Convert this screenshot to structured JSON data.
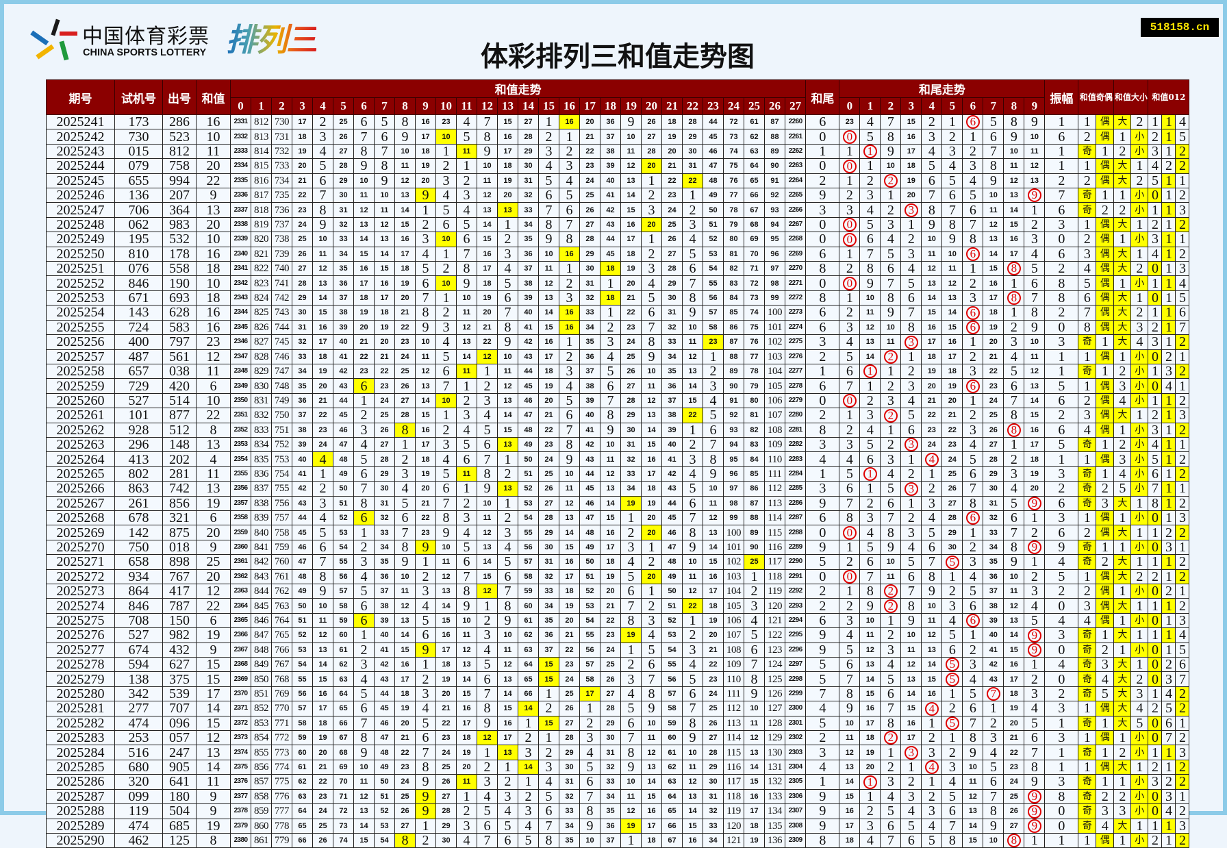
{
  "brand": {
    "cn": "中国体育彩票",
    "en": "CHINA SPORTS LOTTERY",
    "game": "排列三"
  },
  "title": "体彩排列三和值走势图",
  "site_badge": "518158.cn",
  "headers": {
    "issue": "期号",
    "test": "试机号",
    "draw": "出号",
    "sum": "和值",
    "sum_trend": "和值走势",
    "tail": "和尾",
    "tail_trend": "和尾走势",
    "amplitude": "振幅",
    "parity": "和值奇偶",
    "size": "和值大小",
    "mod3": "和值012",
    "sum_cols": [
      "0",
      "1",
      "2",
      "3",
      "4",
      "5",
      "6",
      "7",
      "8",
      "9",
      "10",
      "11",
      "12",
      "13",
      "14",
      "15",
      "16",
      "17",
      "18",
      "19",
      "20",
      "21",
      "22",
      "23",
      "24",
      "25",
      "26",
      "27"
    ],
    "tail_cols": [
      "0",
      "1",
      "2",
      "3",
      "4",
      "5",
      "6",
      "7",
      "8",
      "9"
    ]
  },
  "labels": {
    "odd": "奇",
    "even": "偶",
    "big": "大",
    "small": "小",
    "mod3": [
      "0",
      "1",
      "2"
    ]
  },
  "colors": {
    "header_bg": "#8b0000",
    "hit_bg": "#ffff00",
    "tail_circle": "#e00000",
    "badge_bg": "#000000",
    "badge_text": "#ffe600"
  },
  "first_row_omission": {
    "sum": [
      2331,
      812,
      730,
      17,
      2,
      25,
      6,
      5,
      8,
      16,
      23,
      4,
      7,
      15,
      27,
      1,
      0,
      20,
      36,
      9,
      26,
      18,
      28,
      44,
      72,
      61,
      87,
      2260
    ],
    "tail": [
      23,
      4,
      7,
      15,
      2,
      1,
      0,
      5,
      8,
      9
    ],
    "parity": [
      1,
      0
    ],
    "size": [
      0,
      2
    ],
    "mod3": [
      1,
      0,
      4
    ]
  },
  "rows": [
    {
      "issue": "2025241",
      "test": "173",
      "draw": "286",
      "sum": 16,
      "tail": 6,
      "amp": 1
    },
    {
      "issue": "2025242",
      "test": "730",
      "draw": "523",
      "sum": 10,
      "tail": 0,
      "amp": 6
    },
    {
      "issue": "2025243",
      "test": "015",
      "draw": "812",
      "sum": 11,
      "tail": 1,
      "amp": 1
    },
    {
      "issue": "2025244",
      "test": "079",
      "draw": "758",
      "sum": 20,
      "tail": 0,
      "amp": 1
    },
    {
      "issue": "2025245",
      "test": "655",
      "draw": "994",
      "sum": 22,
      "tail": 2,
      "amp": 2
    },
    {
      "issue": "2025246",
      "test": "136",
      "draw": "207",
      "sum": 9,
      "tail": 9,
      "amp": 7
    },
    {
      "issue": "2025247",
      "test": "706",
      "draw": "364",
      "sum": 13,
      "tail": 3,
      "amp": 6
    },
    {
      "issue": "2025248",
      "test": "062",
      "draw": "983",
      "sum": 20,
      "tail": 0,
      "amp": 3
    },
    {
      "issue": "2025249",
      "test": "195",
      "draw": "532",
      "sum": 10,
      "tail": 0,
      "amp": 0
    },
    {
      "issue": "2025250",
      "test": "810",
      "draw": "178",
      "sum": 16,
      "tail": 6,
      "amp": 6
    },
    {
      "issue": "2025251",
      "test": "076",
      "draw": "558",
      "sum": 18,
      "tail": 8,
      "amp": 2
    },
    {
      "issue": "2025252",
      "test": "846",
      "draw": "190",
      "sum": 10,
      "tail": 0,
      "amp": 8
    },
    {
      "issue": "2025253",
      "test": "671",
      "draw": "693",
      "sum": 18,
      "tail": 8,
      "amp": 8
    },
    {
      "issue": "2025254",
      "test": "143",
      "draw": "628",
      "sum": 16,
      "tail": 6,
      "amp": 2
    },
    {
      "issue": "2025255",
      "test": "724",
      "draw": "583",
      "sum": 16,
      "tail": 6,
      "amp": 0
    },
    {
      "issue": "2025256",
      "test": "400",
      "draw": "797",
      "sum": 23,
      "tail": 3,
      "amp": 3
    },
    {
      "issue": "2025257",
      "test": "487",
      "draw": "561",
      "sum": 12,
      "tail": 2,
      "amp": 1
    },
    {
      "issue": "2025258",
      "test": "657",
      "draw": "038",
      "sum": 11,
      "tail": 1,
      "amp": 1
    },
    {
      "issue": "2025259",
      "test": "729",
      "draw": "420",
      "sum": 6,
      "tail": 6,
      "amp": 5
    },
    {
      "issue": "2025260",
      "test": "527",
      "draw": "514",
      "sum": 10,
      "tail": 0,
      "amp": 6
    },
    {
      "issue": "2025261",
      "test": "101",
      "draw": "877",
      "sum": 22,
      "tail": 2,
      "amp": 2
    },
    {
      "issue": "2025262",
      "test": "928",
      "draw": "512",
      "sum": 8,
      "tail": 8,
      "amp": 6
    },
    {
      "issue": "2025263",
      "test": "296",
      "draw": "148",
      "sum": 13,
      "tail": 3,
      "amp": 5
    },
    {
      "issue": "2025264",
      "test": "413",
      "draw": "202",
      "sum": 4,
      "tail": 4,
      "amp": 1
    },
    {
      "issue": "2025265",
      "test": "802",
      "draw": "281",
      "sum": 11,
      "tail": 1,
      "amp": 3
    },
    {
      "issue": "2025266",
      "test": "863",
      "draw": "742",
      "sum": 13,
      "tail": 3,
      "amp": 2
    },
    {
      "issue": "2025267",
      "test": "261",
      "draw": "856",
      "sum": 19,
      "tail": 9,
      "amp": 6
    },
    {
      "issue": "2025268",
      "test": "678",
      "draw": "321",
      "sum": 6,
      "tail": 6,
      "amp": 3
    },
    {
      "issue": "2025269",
      "test": "142",
      "draw": "875",
      "sum": 20,
      "tail": 0,
      "amp": 6
    },
    {
      "issue": "2025270",
      "test": "750",
      "draw": "018",
      "sum": 9,
      "tail": 9,
      "amp": 9
    },
    {
      "issue": "2025271",
      "test": "658",
      "draw": "898",
      "sum": 25,
      "tail": 5,
      "amp": 4
    },
    {
      "issue": "2025272",
      "test": "934",
      "draw": "767",
      "sum": 20,
      "tail": 0,
      "amp": 5
    },
    {
      "issue": "2025273",
      "test": "864",
      "draw": "417",
      "sum": 12,
      "tail": 2,
      "amp": 2
    },
    {
      "issue": "2025274",
      "test": "846",
      "draw": "787",
      "sum": 22,
      "tail": 2,
      "amp": 0
    },
    {
      "issue": "2025275",
      "test": "708",
      "draw": "150",
      "sum": 6,
      "tail": 6,
      "amp": 4
    },
    {
      "issue": "2025276",
      "test": "527",
      "draw": "982",
      "sum": 19,
      "tail": 9,
      "amp": 3
    },
    {
      "issue": "2025277",
      "test": "674",
      "draw": "432",
      "sum": 9,
      "tail": 9,
      "amp": 0
    },
    {
      "issue": "2025278",
      "test": "594",
      "draw": "627",
      "sum": 15,
      "tail": 5,
      "amp": 4
    },
    {
      "issue": "2025279",
      "test": "138",
      "draw": "375",
      "sum": 15,
      "tail": 5,
      "amp": 0
    },
    {
      "issue": "2025280",
      "test": "342",
      "draw": "539",
      "sum": 17,
      "tail": 7,
      "amp": 2
    },
    {
      "issue": "2025281",
      "test": "277",
      "draw": "707",
      "sum": 14,
      "tail": 4,
      "amp": 3
    },
    {
      "issue": "2025282",
      "test": "474",
      "draw": "096",
      "sum": 15,
      "tail": 5,
      "amp": 1
    },
    {
      "issue": "2025283",
      "test": "253",
      "draw": "057",
      "sum": 12,
      "tail": 2,
      "amp": 3
    },
    {
      "issue": "2025284",
      "test": "516",
      "draw": "247",
      "sum": 13,
      "tail": 3,
      "amp": 1
    },
    {
      "issue": "2025285",
      "test": "680",
      "draw": "905",
      "sum": 14,
      "tail": 4,
      "amp": 1
    },
    {
      "issue": "2025286",
      "test": "320",
      "draw": "641",
      "sum": 11,
      "tail": 1,
      "amp": 3
    },
    {
      "issue": "2025287",
      "test": "099",
      "draw": "180",
      "sum": 9,
      "tail": 9,
      "amp": 8
    },
    {
      "issue": "2025288",
      "test": "119",
      "draw": "504",
      "sum": 9,
      "tail": 9,
      "amp": 0
    },
    {
      "issue": "2025289",
      "test": "474",
      "draw": "685",
      "sum": 19,
      "tail": 9,
      "amp": 0
    },
    {
      "issue": "2025290",
      "test": "462",
      "draw": "125",
      "sum": 8,
      "tail": 8,
      "amp": 1
    }
  ]
}
